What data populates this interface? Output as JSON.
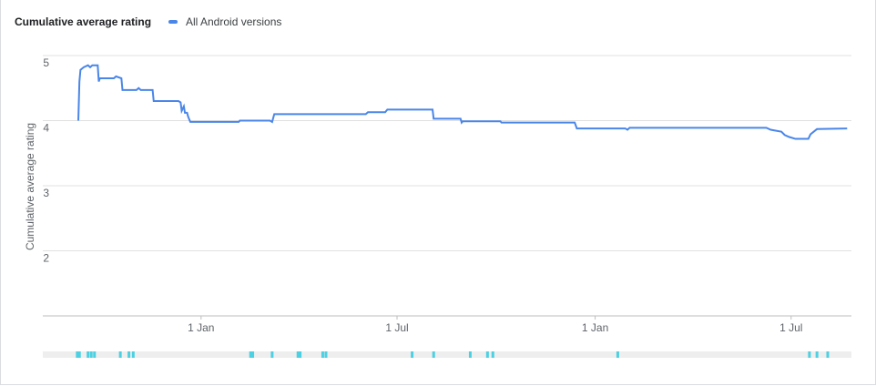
{
  "chart_data": {
    "type": "line",
    "title": "Cumulative average rating",
    "y_label": "Cumulative average rating",
    "x": [
      0,
      1,
      2,
      5,
      9,
      11,
      13,
      18,
      19,
      20,
      33,
      35,
      40,
      41,
      54,
      56,
      58,
      69,
      70,
      93,
      95,
      96,
      98,
      99,
      101,
      102,
      104,
      149,
      150,
      178,
      180,
      182,
      267,
      269,
      285,
      287,
      329,
      330,
      355,
      356,
      357,
      392,
      393,
      461,
      463,
      508,
      510,
      512,
      639,
      643,
      653,
      656,
      660,
      666,
      678,
      680,
      686,
      714
    ],
    "series": [
      {
        "name": "All Android versions",
        "color": "#4a86e8",
        "values": [
          4.0,
          4.6,
          4.78,
          4.82,
          4.85,
          4.82,
          4.85,
          4.85,
          4.6,
          4.65,
          4.65,
          4.68,
          4.65,
          4.47,
          4.47,
          4.5,
          4.47,
          4.47,
          4.3,
          4.3,
          4.28,
          4.15,
          4.22,
          4.12,
          4.12,
          4.06,
          3.98,
          3.98,
          4.0,
          4.0,
          3.98,
          4.1,
          4.1,
          4.13,
          4.13,
          4.17,
          4.17,
          4.03,
          4.03,
          3.97,
          3.99,
          3.99,
          3.97,
          3.97,
          3.88,
          3.88,
          3.86,
          3.89,
          3.89,
          3.86,
          3.83,
          3.78,
          3.75,
          3.72,
          3.72,
          3.79,
          3.87,
          3.88
        ]
      }
    ],
    "xlim": [
      -33,
      718
    ],
    "xticks": [
      {
        "value": 114,
        "label": "1 Jan"
      },
      {
        "value": 296,
        "label": "1 Jul"
      },
      {
        "value": 480,
        "label": "1 Jan"
      },
      {
        "value": 662,
        "label": "1 Jul"
      }
    ],
    "ylim": [
      1,
      5
    ],
    "yticks": [
      2,
      3,
      4,
      5
    ],
    "grid": true,
    "markers": [
      -1,
      1,
      9,
      12,
      15,
      39,
      47,
      51,
      160,
      162,
      180,
      204,
      206,
      227,
      230,
      310,
      330,
      364,
      380,
      385,
      501,
      679,
      686,
      696
    ],
    "marker_color": "#4dd0e1"
  }
}
